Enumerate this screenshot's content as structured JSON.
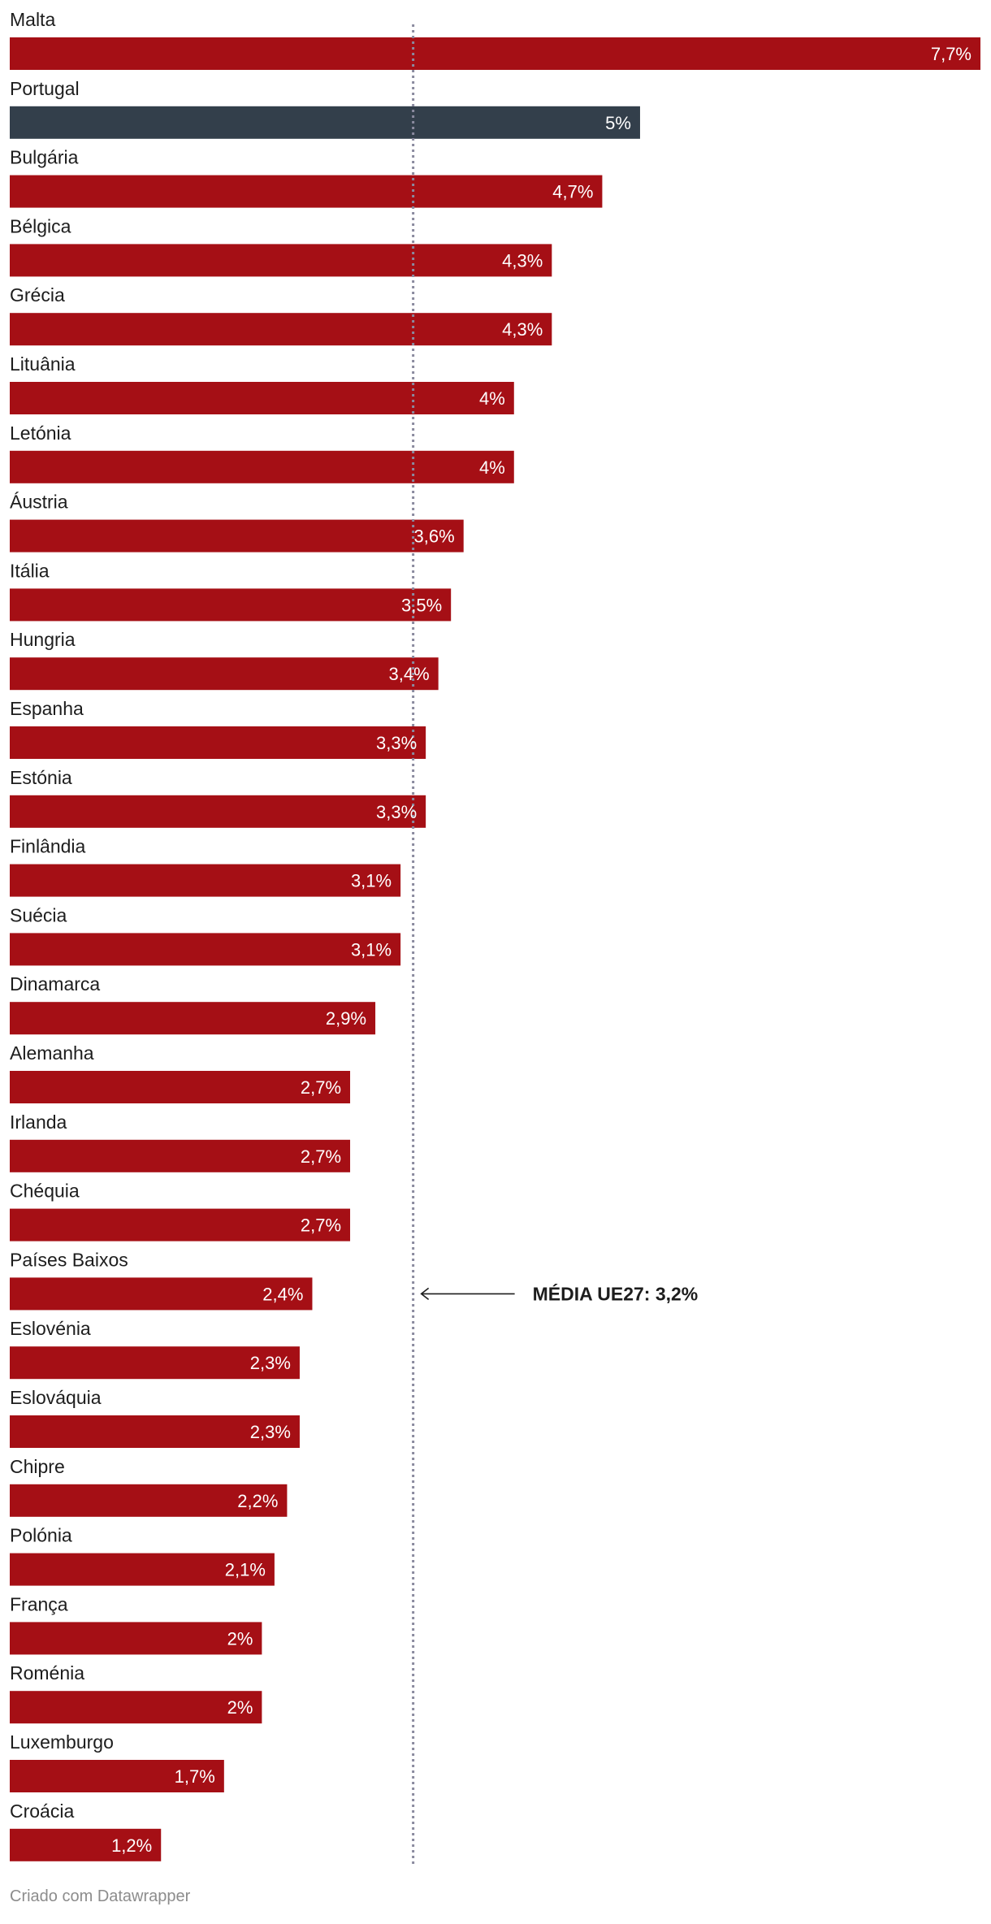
{
  "chart_data": {
    "type": "bar",
    "orientation": "horizontal",
    "categories": [
      "Malta",
      "Portugal",
      "Bulgária",
      "Bélgica",
      "Grécia",
      "Lituânia",
      "Letónia",
      "Áustria",
      "Itália",
      "Hungria",
      "Espanha",
      "Estónia",
      "Finlândia",
      "Suécia",
      "Dinamarca",
      "Alemanha",
      "Irlanda",
      "Chéquia",
      "Países Baixos",
      "Eslovénia",
      "Eslováquia",
      "Chipre",
      "Polónia",
      "França",
      "Roménia",
      "Luxemburgo",
      "Croácia"
    ],
    "values": [
      7.7,
      5,
      4.7,
      4.3,
      4.3,
      4.0,
      4.0,
      3.6,
      3.5,
      3.4,
      3.3,
      3.3,
      3.1,
      3.1,
      2.9,
      2.7,
      2.7,
      2.7,
      2.4,
      2.3,
      2.3,
      2.2,
      2.1,
      2.0,
      2.0,
      1.7,
      1.2
    ],
    "value_labels": [
      "7,7%",
      "5%",
      "4,7%",
      "4,3%",
      "4,3%",
      "4%",
      "4%",
      "3,6%",
      "3,5%",
      "3,4%",
      "3,3%",
      "3,3%",
      "3,1%",
      "3,1%",
      "2,9%",
      "2,7%",
      "2,7%",
      "2,7%",
      "2,4%",
      "2,3%",
      "2,3%",
      "2,2%",
      "2,1%",
      "2%",
      "2%",
      "1,7%",
      "1,2%"
    ],
    "highlight": "Portugal",
    "xlim": [
      0,
      7.7
    ],
    "grid": false,
    "reference_line": {
      "value": 3.2,
      "label": "MÉDIA UE27: 3,2%",
      "annotation_row": "Países Baixos"
    },
    "colors": {
      "bar": "#a50f15",
      "highlight": "#333f4b",
      "reference_line": "#8a8a9e"
    }
  },
  "footer": {
    "credit": "Criado com Datawrapper"
  }
}
